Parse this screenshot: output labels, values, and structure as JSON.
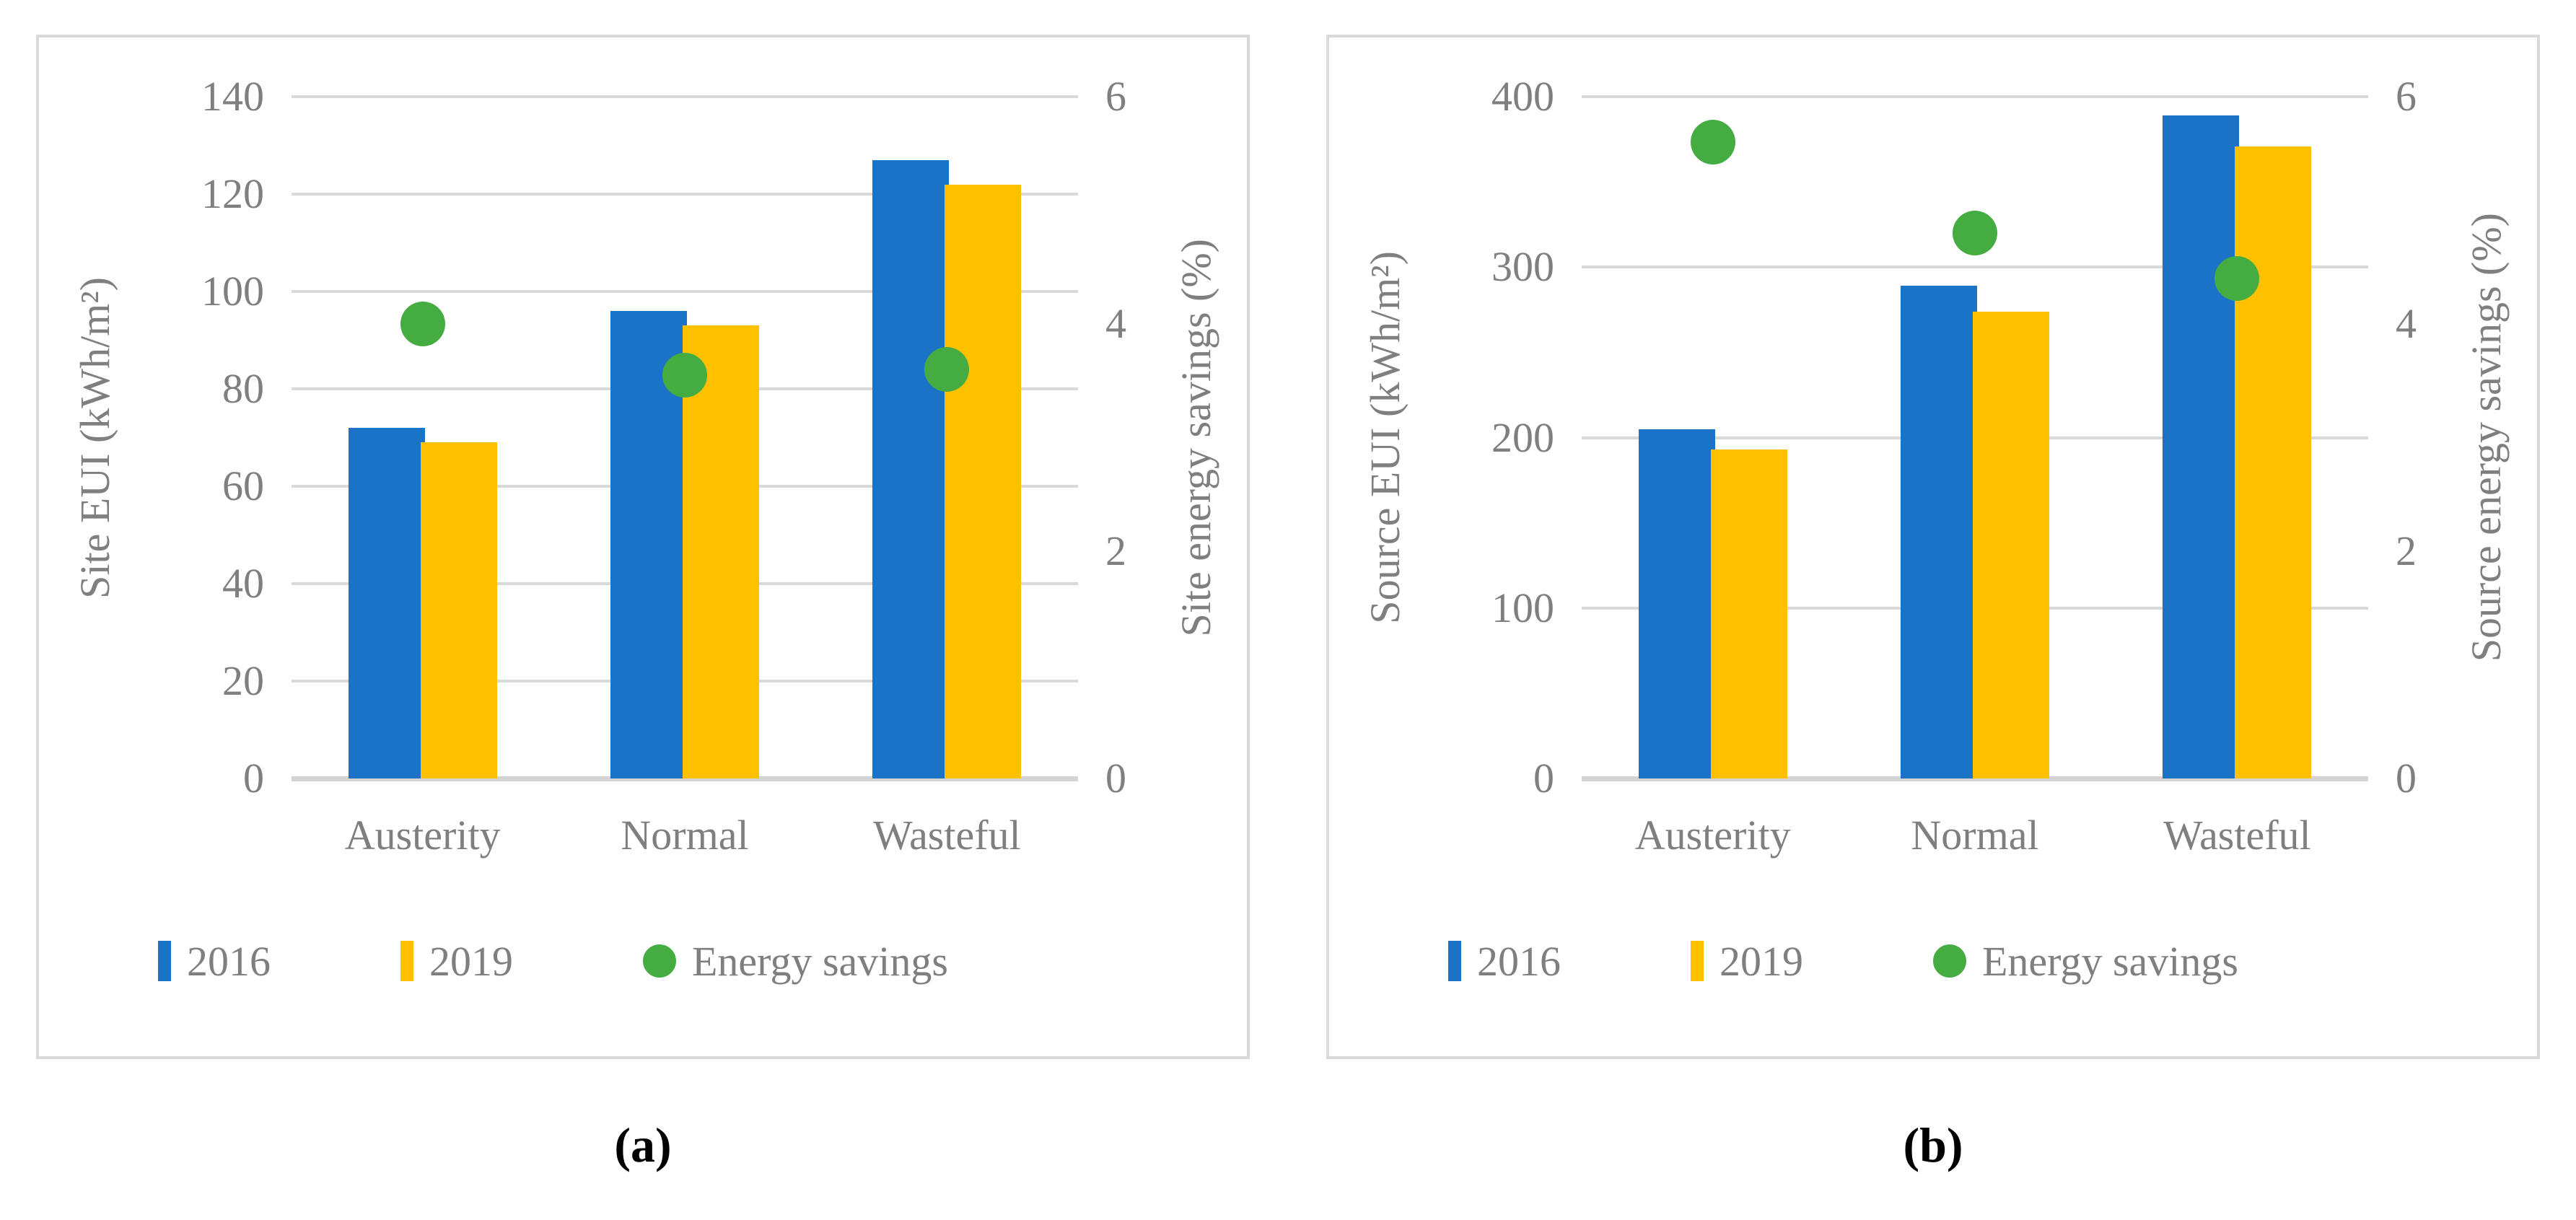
{
  "figure": {
    "captions": [
      "(a)",
      "(b)"
    ]
  },
  "colors": {
    "bar_2016": "#1B73C8",
    "bar_2019": "#FFC000",
    "dot_energy_savings": "#45AC41",
    "gridline": "#D9D9D9",
    "axis_line": "#D3D3D3",
    "axis_text": "#7F7F7F",
    "panel_border": "#D9D9D9",
    "caption_text": "#000000"
  },
  "chart_data": [
    {
      "type": "bar",
      "subtype": "grouped-bars-with-scatter-overlay",
      "categories": [
        "Austerity",
        "Normal",
        "Wasteful"
      ],
      "series": [
        {
          "name": "2016",
          "type": "bar",
          "axis": "left",
          "values": [
            72,
            96,
            127
          ]
        },
        {
          "name": "2019",
          "type": "bar",
          "axis": "left",
          "values": [
            69,
            93,
            122
          ]
        },
        {
          "name": "Energy savings",
          "type": "scatter",
          "axis": "right",
          "values": [
            4.0,
            3.55,
            3.6
          ]
        }
      ],
      "left_axis": {
        "title": "Site EUI (kWh/m²)",
        "min": 0,
        "max": 140,
        "ticks": [
          140,
          120,
          100,
          80,
          60,
          40,
          20,
          0
        ]
      },
      "right_axis": {
        "title": "Site energy savings (%)",
        "min": 0,
        "max": 6,
        "ticks": [
          6,
          4,
          2,
          0
        ]
      },
      "grid": true,
      "legend_position": "bottom",
      "caption": "(a)"
    },
    {
      "type": "bar",
      "subtype": "grouped-bars-with-scatter-overlay",
      "categories": [
        "Austerity",
        "Normal",
        "Wasteful"
      ],
      "series": [
        {
          "name": "2016",
          "type": "bar",
          "axis": "left",
          "values": [
            205,
            289,
            389
          ]
        },
        {
          "name": "2019",
          "type": "bar",
          "axis": "left",
          "values": [
            193,
            274,
            371
          ]
        },
        {
          "name": "Energy savings",
          "type": "scatter",
          "axis": "right",
          "values": [
            5.6,
            4.8,
            4.4
          ]
        }
      ],
      "left_axis": {
        "title": "Source EUI (kWh/m²)",
        "min": 0,
        "max": 400,
        "ticks": [
          400,
          300,
          200,
          100,
          0
        ]
      },
      "right_axis": {
        "title": "Source energy savings (%)",
        "min": 0,
        "max": 6,
        "ticks": [
          6,
          4,
          2,
          0
        ]
      },
      "grid": true,
      "legend_position": "bottom",
      "caption": "(b)"
    }
  ]
}
